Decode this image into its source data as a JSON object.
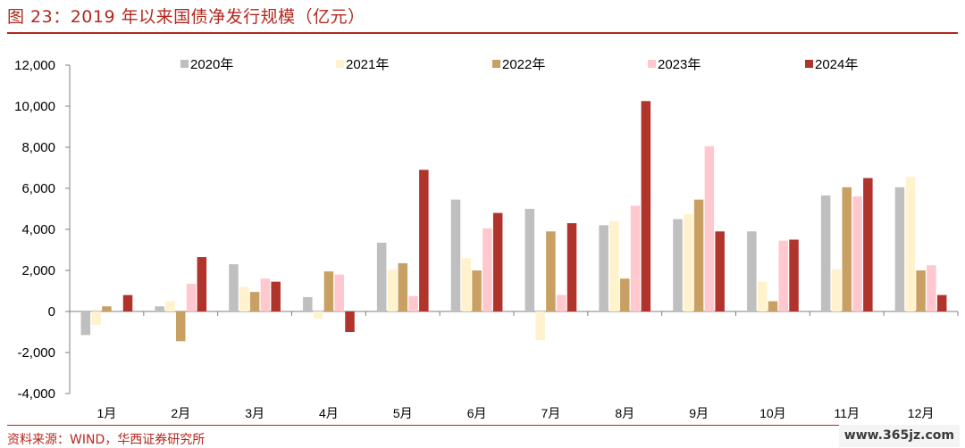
{
  "figure_title": "图 23：2019 年以来国债净发行规模（亿元）",
  "source_note": "资料来源：WIND，华西证券研究所",
  "watermark": "www.365jz.com",
  "colors": {
    "accent": "#b5271f",
    "series": [
      "#bfbfbf",
      "#fff2cc",
      "#c9a063",
      "#ffc7ce",
      "#b0342c"
    ]
  },
  "chart_data": {
    "type": "bar",
    "categories": [
      "1月",
      "2月",
      "3月",
      "4月",
      "5月",
      "6月",
      "7月",
      "8月",
      "9月",
      "10月",
      "11月",
      "12月"
    ],
    "series": [
      {
        "name": "2020年",
        "values": [
          -1150,
          250,
          2300,
          700,
          3350,
          5450,
          5000,
          4200,
          4500,
          3900,
          5650,
          6050
        ]
      },
      {
        "name": "2021年",
        "values": [
          -650,
          500,
          1200,
          -350,
          2050,
          2600,
          -1400,
          4400,
          4750,
          1450,
          2050,
          6550
        ]
      },
      {
        "name": "2022年",
        "values": [
          250,
          -1450,
          950,
          1950,
          2350,
          2000,
          3900,
          1600,
          5450,
          500,
          6050,
          2000
        ]
      },
      {
        "name": "2023年",
        "values": [
          0,
          1350,
          1600,
          1800,
          750,
          4050,
          800,
          5150,
          8050,
          3450,
          5600,
          2250
        ]
      },
      {
        "name": "2024年",
        "values": [
          800,
          2650,
          1450,
          -1000,
          6900,
          4800,
          4300,
          10250,
          3900,
          3500,
          6500,
          800
        ]
      }
    ],
    "yticks": [
      "-4,000",
      "-2,000",
      "0",
      "2,000",
      "4,000",
      "6,000",
      "8,000",
      "10,000",
      "12,000"
    ],
    "ylim": [
      -4000,
      12000
    ],
    "legend_position": "top",
    "grid": false
  }
}
